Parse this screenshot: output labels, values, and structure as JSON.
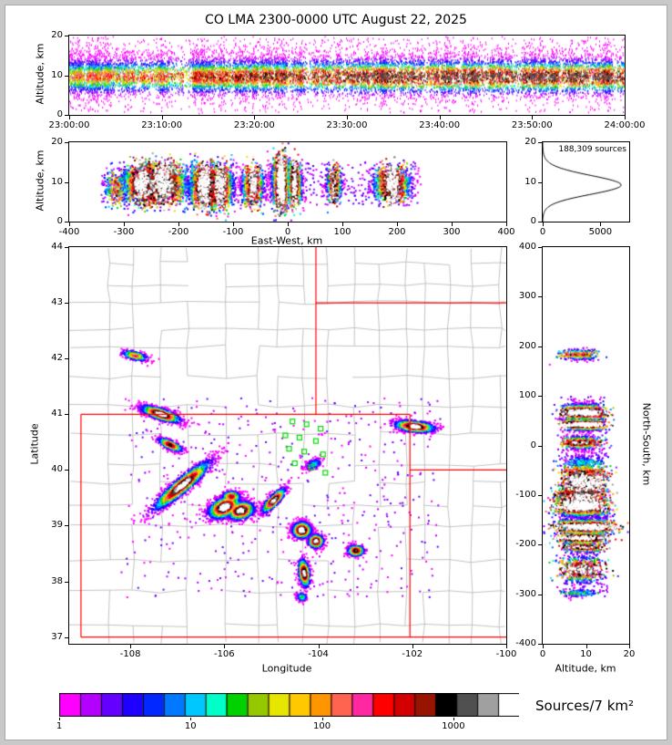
{
  "title": "CO LMA 2300-0000 UTC August 22, 2025",
  "colorbar": {
    "label": "Sources/7 km²",
    "ticks": [
      1,
      10,
      100,
      1000
    ],
    "log10_range": [
      0,
      3.5
    ],
    "palette": [
      "#ff00ff",
      "#b400ff",
      "#6400ff",
      "#1e00ff",
      "#0028ff",
      "#0078ff",
      "#00c8ff",
      "#00ffc8",
      "#00d200",
      "#96c800",
      "#e6e600",
      "#ffc800",
      "#ff9600",
      "#ff6450",
      "#ff28a0",
      "#ff0000",
      "#d20000",
      "#961400",
      "#000000",
      "#505050",
      "#a0a0a0",
      "#ffffff"
    ]
  },
  "chart_data": [
    {
      "id": "time_height",
      "type": "scatter",
      "ylabel": "Altitude, km",
      "xlim": [
        0,
        60
      ],
      "ylim": [
        0,
        20
      ],
      "xticks": [
        {
          "v": 0,
          "label": "23:00:00"
        },
        {
          "v": 10,
          "label": "23:10:00"
        },
        {
          "v": 20,
          "label": "23:20:00"
        },
        {
          "v": 30,
          "label": "23:30:00"
        },
        {
          "v": 40,
          "label": "23:40:00"
        },
        {
          "v": 50,
          "label": "23:50:00"
        },
        {
          "v": 60,
          "label": "24:00:00"
        }
      ],
      "yticks": [
        0,
        10,
        20
      ],
      "n_points": 16000,
      "core_altitude_km": 9.6,
      "core_spread_km": 2.4,
      "anvil_altitude_km": 13.5
    },
    {
      "id": "east_west",
      "type": "scatter",
      "xlabel": "East-West, km",
      "ylabel": "Altitude, km",
      "xlim": [
        -400,
        400
      ],
      "ylim": [
        0,
        20
      ],
      "xticks": [
        -400,
        -300,
        -200,
        -100,
        0,
        100,
        200,
        300,
        400
      ],
      "yticks": [
        0,
        10,
        20
      ]
    },
    {
      "id": "altitude_histogram",
      "type": "line",
      "annotation": "188,309 sources",
      "xlim": [
        0,
        7500
      ],
      "ylim": [
        0,
        20
      ],
      "xticks": [
        0,
        5000
      ],
      "yticks": [
        0,
        10,
        20
      ],
      "peak": {
        "altitude_km": 9.5,
        "value": 6800
      }
    },
    {
      "id": "plan_view",
      "type": "scatter",
      "xlabel": "Longitude",
      "ylabel": "Latitude",
      "xlim": [
        -109.3,
        -100
      ],
      "ylim": [
        36.88,
        44
      ],
      "xticks": [
        -108,
        -106,
        -104,
        -102,
        -100
      ],
      "yticks": [
        37,
        38,
        39,
        40,
        41,
        42,
        43,
        44
      ],
      "projection": {
        "center_lon": -104.2,
        "center_lat": 40.4,
        "km_per_deg_lon": 85,
        "km_per_deg_lat": 111
      },
      "clusters": [
        {
          "lon": -107.35,
          "lat": 41.0,
          "sx": 0.22,
          "sy": 0.05,
          "rot": -15,
          "count": 1300,
          "intensity": 0.95,
          "alt_mean": 9.5,
          "alt_sd": 2.2
        },
        {
          "lon": -107.9,
          "lat": 42.05,
          "sx": 0.15,
          "sy": 0.04,
          "rot": -10,
          "count": 280,
          "intensity": 0.6,
          "alt_mean": 8.5,
          "alt_sd": 2.0
        },
        {
          "lon": -107.15,
          "lat": 40.45,
          "sx": 0.14,
          "sy": 0.04,
          "rot": -20,
          "count": 550,
          "intensity": 0.75,
          "alt_mean": 9.0,
          "alt_sd": 2.0
        },
        {
          "lon": -106.9,
          "lat": 39.72,
          "sx": 0.38,
          "sy": 0.07,
          "rot": 35,
          "count": 1800,
          "intensity": 0.95,
          "alt_mean": 9.5,
          "alt_sd": 2.5
        },
        {
          "lon": -106.0,
          "lat": 39.33,
          "sx": 0.18,
          "sy": 0.09,
          "rot": 20,
          "count": 1400,
          "intensity": 1.0,
          "alt_mean": 9.0,
          "alt_sd": 2.5
        },
        {
          "lon": -105.65,
          "lat": 39.27,
          "sx": 0.15,
          "sy": 0.08,
          "rot": 10,
          "count": 1100,
          "intensity": 0.95,
          "alt_mean": 9.0,
          "alt_sd": 2.5
        },
        {
          "lon": -105.85,
          "lat": 39.52,
          "sx": 0.1,
          "sy": 0.05,
          "rot": 0,
          "count": 450,
          "intensity": 0.7,
          "alt_mean": 8.5,
          "alt_sd": 2.0
        },
        {
          "lon": -104.95,
          "lat": 39.45,
          "sx": 0.16,
          "sy": 0.05,
          "rot": 40,
          "count": 800,
          "intensity": 0.9,
          "alt_mean": 9.0,
          "alt_sd": 2.2
        },
        {
          "lon": -104.35,
          "lat": 38.92,
          "sx": 0.1,
          "sy": 0.07,
          "rot": 0,
          "count": 1400,
          "intensity": 1.0,
          "alt_mean": 10.0,
          "alt_sd": 3.0
        },
        {
          "lon": -104.05,
          "lat": 38.72,
          "sx": 0.08,
          "sy": 0.06,
          "rot": 0,
          "count": 750,
          "intensity": 0.9,
          "alt_mean": 9.5,
          "alt_sd": 2.5
        },
        {
          "lon": -104.3,
          "lat": 38.15,
          "sx": 0.06,
          "sy": 0.13,
          "rot": 10,
          "count": 650,
          "intensity": 0.9,
          "alt_mean": 9.0,
          "alt_sd": 2.5
        },
        {
          "lon": -103.2,
          "lat": 38.55,
          "sx": 0.09,
          "sy": 0.05,
          "rot": 0,
          "count": 380,
          "intensity": 0.8,
          "alt_mean": 9.0,
          "alt_sd": 2.2
        },
        {
          "lon": -101.95,
          "lat": 40.78,
          "sx": 0.22,
          "sy": 0.05,
          "rot": -5,
          "count": 1100,
          "intensity": 0.95,
          "alt_mean": 9.5,
          "alt_sd": 2.2
        },
        {
          "lon": -104.35,
          "lat": 37.72,
          "sx": 0.06,
          "sy": 0.04,
          "rot": 0,
          "count": 130,
          "intensity": 0.35,
          "alt_mean": 8.0,
          "alt_sd": 2.0
        },
        {
          "lon": -104.1,
          "lat": 40.1,
          "sx": 0.1,
          "sy": 0.05,
          "rot": 20,
          "count": 140,
          "intensity": 0.3,
          "alt_mean": 9.0,
          "alt_sd": 2.0
        }
      ],
      "background_points": {
        "count": 500,
        "lon_range": [
          -108.2,
          -101.4
        ],
        "lat_range": [
          37.7,
          41.3
        ]
      },
      "stations": [
        [
          -104.55,
          40.87
        ],
        [
          -104.25,
          40.82
        ],
        [
          -103.95,
          40.74
        ],
        [
          -104.7,
          40.62
        ],
        [
          -104.4,
          40.58
        ],
        [
          -104.05,
          40.52
        ],
        [
          -104.62,
          40.38
        ],
        [
          -104.3,
          40.33
        ],
        [
          -103.9,
          40.28
        ],
        [
          -104.5,
          40.12
        ],
        [
          -104.15,
          40.05
        ],
        [
          -103.85,
          39.95
        ]
      ],
      "state_borders": [
        [
          [
            -109.05,
            37
          ],
          [
            -109.05,
            41
          ]
        ],
        [
          [
            -109.05,
            41
          ],
          [
            -102.05,
            41
          ]
        ],
        [
          [
            -102.05,
            41
          ],
          [
            -102.05,
            37
          ]
        ],
        [
          [
            -109.05,
            37
          ],
          [
            -100,
            37
          ]
        ],
        [
          [
            -104.05,
            41
          ],
          [
            -104.05,
            44
          ]
        ],
        [
          [
            -104.05,
            43
          ],
          [
            -100,
            43
          ]
        ],
        [
          [
            -102.05,
            40
          ],
          [
            -100,
            40
          ]
        ]
      ],
      "colors": {
        "county": "#b4b4b4",
        "state_border": "#ff0000",
        "station": "#00dd00"
      }
    },
    {
      "id": "north_south",
      "type": "scatter",
      "xlabel": "Altitude, km",
      "ylabel": "North-South, km",
      "xlim": [
        0,
        20
      ],
      "ylim": [
        -400,
        400
      ],
      "xticks": [
        0,
        10,
        20
      ],
      "yticks": [
        -400,
        -300,
        -200,
        -100,
        0,
        100,
        200,
        300,
        400
      ]
    }
  ]
}
